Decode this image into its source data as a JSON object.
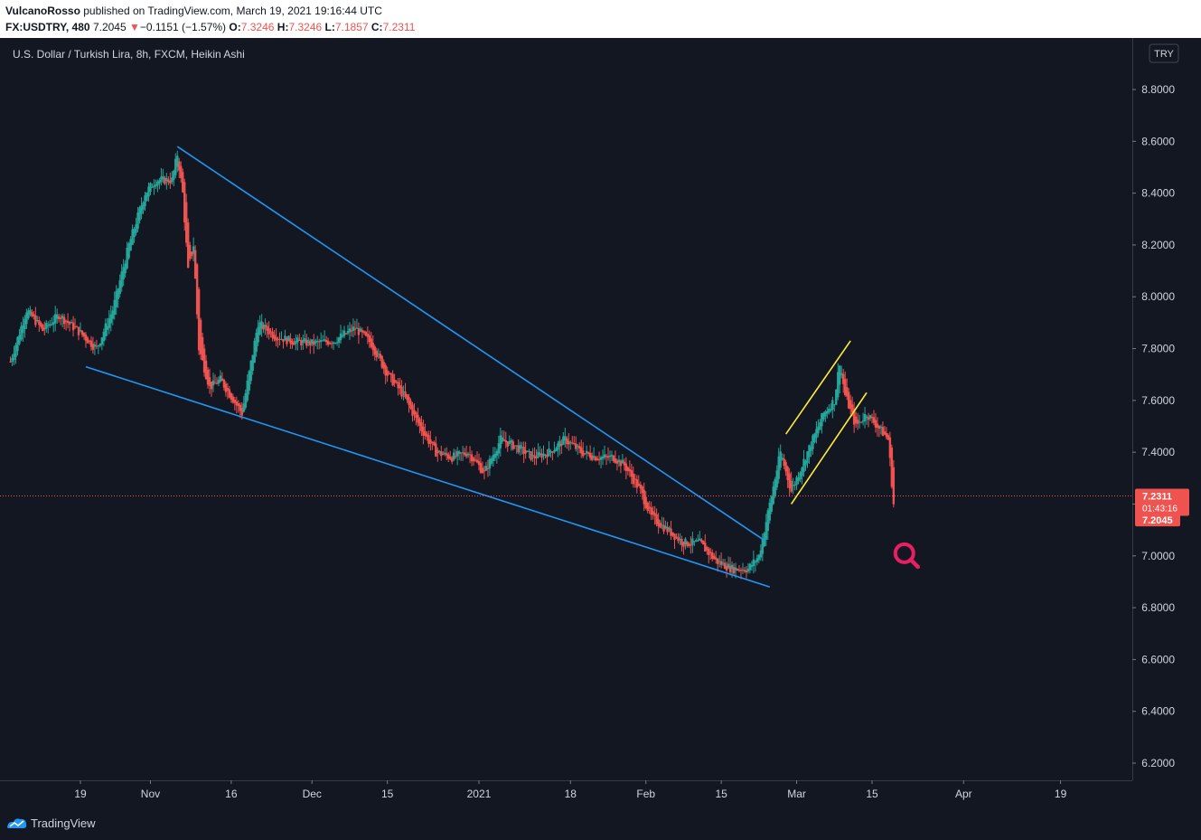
{
  "header": {
    "author": "VulcanoRosso",
    "published": " published on TradingView.com, March 19, 2021 19:16:44 UTC",
    "symbol": "FX:USDTRY, 480",
    "price": "7.2045",
    "change": "−0.1151 (−1.57%)",
    "o_label": "O:",
    "o_value": "7.3246",
    "h_label": "H:",
    "h_value": "7.3246",
    "l_label": "L:",
    "l_value": "7.1857",
    "c_label": "C:",
    "c_value": "7.2311"
  },
  "footer": {
    "brand": "TradingView",
    "logo_icon": "tradingview-logo-icon"
  },
  "colors": {
    "background": "#131722",
    "up": "#26a69a",
    "down": "#ef5350",
    "trendline": "#2196f3",
    "channel": "#ffeb3b",
    "marker": "#e91e63",
    "grid": "#2a2e39"
  },
  "chart_data": {
    "type": "candlestick",
    "title": "U.S. Dollar / Turkish Lira, 8h, FXCM, Heikin Ashi",
    "currency_badge": "TRY",
    "ylim": [
      6.12,
      8.94
    ],
    "y_ticks": [
      "8.8000",
      "8.6000",
      "8.4000",
      "8.2000",
      "8.0000",
      "7.8000",
      "7.6000",
      "7.4000",
      "7.2000",
      "7.0000",
      "6.8000",
      "6.6000",
      "6.4000",
      "6.2000"
    ],
    "x_ticks": [
      {
        "label": "19",
        "date": "2020-10-19"
      },
      {
        "label": "Nov",
        "date": "2020-11-01"
      },
      {
        "label": "16",
        "date": "2020-11-16"
      },
      {
        "label": "Dec",
        "date": "2020-12-01"
      },
      {
        "label": "15",
        "date": "2020-12-15"
      },
      {
        "label": "2021",
        "date": "2021-01-01"
      },
      {
        "label": "18",
        "date": "2021-01-18"
      },
      {
        "label": "Feb",
        "date": "2021-02-01"
      },
      {
        "label": "15",
        "date": "2021-02-15"
      },
      {
        "label": "Mar",
        "date": "2021-03-01"
      },
      {
        "label": "15",
        "date": "2021-03-15"
      },
      {
        "label": "Apr",
        "date": "2021-04-01"
      },
      {
        "label": "19",
        "date": "2021-04-19"
      }
    ],
    "x_range": [
      "2020-10-06",
      "2021-05-01"
    ],
    "price_path": [
      [
        "2020-10-06",
        7.75
      ],
      [
        "2020-10-09",
        7.95
      ],
      [
        "2020-10-12",
        7.87
      ],
      [
        "2020-10-15",
        7.93
      ],
      [
        "2020-10-19",
        7.86
      ],
      [
        "2020-10-22",
        7.8
      ],
      [
        "2020-10-25",
        7.95
      ],
      [
        "2020-10-28",
        8.2
      ],
      [
        "2020-10-31",
        8.4
      ],
      [
        "2020-11-02",
        8.45
      ],
      [
        "2020-11-05",
        8.45
      ],
      [
        "2020-11-06",
        8.55
      ],
      [
        "2020-11-07",
        8.4
      ],
      [
        "2020-11-08",
        8.1
      ],
      [
        "2020-11-09",
        8.2
      ],
      [
        "2020-11-10",
        7.8
      ],
      [
        "2020-11-12",
        7.65
      ],
      [
        "2020-11-14",
        7.68
      ],
      [
        "2020-11-18",
        7.55
      ],
      [
        "2020-11-21",
        7.9
      ],
      [
        "2020-11-24",
        7.85
      ],
      [
        "2020-11-27",
        7.83
      ],
      [
        "2020-12-01",
        7.82
      ],
      [
        "2020-12-05",
        7.83
      ],
      [
        "2020-12-09",
        7.88
      ],
      [
        "2020-12-12",
        7.82
      ],
      [
        "2020-12-15",
        7.7
      ],
      [
        "2020-12-18",
        7.62
      ],
      [
        "2020-12-21",
        7.5
      ],
      [
        "2020-12-24",
        7.4
      ],
      [
        "2020-12-27",
        7.38
      ],
      [
        "2020-12-30",
        7.4
      ],
      [
        "2021-01-02",
        7.32
      ],
      [
        "2021-01-05",
        7.45
      ],
      [
        "2021-01-08",
        7.42
      ],
      [
        "2021-01-11",
        7.38
      ],
      [
        "2021-01-14",
        7.4
      ],
      [
        "2021-01-17",
        7.45
      ],
      [
        "2021-01-20",
        7.4
      ],
      [
        "2021-01-23",
        7.38
      ],
      [
        "2021-01-26",
        7.38
      ],
      [
        "2021-01-28",
        7.35
      ],
      [
        "2021-01-31",
        7.25
      ],
      [
        "2021-02-02",
        7.15
      ],
      [
        "2021-02-05",
        7.1
      ],
      [
        "2021-02-08",
        7.05
      ],
      [
        "2021-02-11",
        7.05
      ],
      [
        "2021-02-14",
        6.98
      ],
      [
        "2021-02-17",
        6.95
      ],
      [
        "2021-02-20",
        6.95
      ],
      [
        "2021-02-22",
        7.0
      ],
      [
        "2021-02-24",
        7.2
      ],
      [
        "2021-02-26",
        7.4
      ],
      [
        "2021-02-28",
        7.25
      ],
      [
        "2021-03-02",
        7.35
      ],
      [
        "2021-03-04",
        7.45
      ],
      [
        "2021-03-06",
        7.55
      ],
      [
        "2021-03-08",
        7.6
      ],
      [
        "2021-03-09",
        7.75
      ],
      [
        "2021-03-10",
        7.62
      ],
      [
        "2021-03-12",
        7.5
      ],
      [
        "2021-03-14",
        7.55
      ],
      [
        "2021-03-16",
        7.5
      ],
      [
        "2021-03-18",
        7.45
      ],
      [
        "2021-03-19",
        7.2
      ]
    ],
    "price_path_note_free": true,
    "trendlines": [
      {
        "color": "blue",
        "from": [
          "2020-11-06",
          8.58
        ],
        "to": [
          "2021-02-23",
          7.06
        ]
      },
      {
        "color": "blue",
        "from": [
          "2020-10-20",
          7.73
        ],
        "to": [
          "2021-02-24",
          6.88
        ]
      },
      {
        "color": "yellow",
        "from": [
          "2021-02-27",
          7.47
        ],
        "to": [
          "2021-03-11",
          7.83
        ]
      },
      {
        "color": "yellow",
        "from": [
          "2021-02-28",
          7.2
        ],
        "to": [
          "2021-03-14",
          7.63
        ]
      }
    ],
    "last_price": {
      "value": 7.2311,
      "label": "7.2311",
      "countdown": "01:43:16"
    },
    "current_price": {
      "value": 7.2045,
      "label": "7.2045"
    },
    "marker": {
      "icon": "magnifier-icon",
      "date": "2021-03-21",
      "price": 7.01
    },
    "grid": false
  }
}
